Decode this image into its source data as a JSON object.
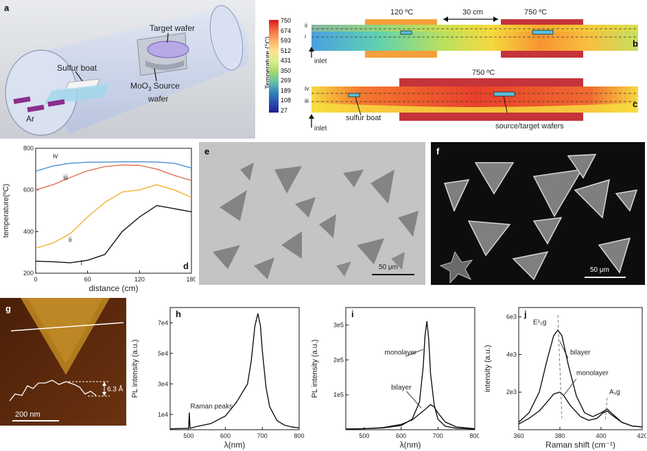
{
  "panel_a": {
    "label": "a",
    "target_wafer": "Target wafer",
    "sulfur_boat": "Sulfur boat",
    "source_wafer_line1": "MoO",
    "source_wafer_sub": "3",
    "source_wafer_line1b": " Source",
    "source_wafer_line2": "wafer",
    "ar": "Ar"
  },
  "colorbar": {
    "title": "Temperature (°C)",
    "ticks": [
      "750",
      "674",
      "593",
      "512",
      "431",
      "350",
      "269",
      "189",
      "108",
      "27"
    ]
  },
  "panel_b": {
    "label": "b",
    "temp_left": "120 ºC",
    "distance": "30 cm",
    "temp_right": "750 ºC",
    "line_ii": "ii",
    "line_i": "i",
    "inlet": "inlet"
  },
  "panel_c": {
    "label": "c",
    "temp": "750 ºC",
    "line_iv": "iv",
    "line_iii": "iii",
    "inlet": "inlet",
    "sulfur_boat": "sulfur boat",
    "wafers": "source/target wafers"
  },
  "panel_e": {
    "label": "e",
    "scale": "50 μm"
  },
  "panel_f": {
    "label": "f",
    "scale": "50 μm"
  },
  "panel_g": {
    "label": "g",
    "height": "6.3 Å",
    "scale": "200 nm"
  },
  "chart_data": [
    {
      "id": "d",
      "label": "d",
      "type": "line",
      "xlabel": "distance (cm)",
      "ylabel": "temperature(ºC)",
      "xlim": [
        0,
        180
      ],
      "ylim": [
        200,
        800
      ],
      "xticks": [
        "0",
        "60",
        "120",
        "180"
      ],
      "yticks": [
        "200",
        "400",
        "600",
        "800"
      ],
      "series": [
        {
          "name": "iv",
          "color": "#4a8fcf",
          "x": [
            0,
            20,
            40,
            60,
            80,
            100,
            120,
            140,
            160,
            180
          ],
          "y": [
            690,
            715,
            728,
            733,
            734,
            735,
            735,
            734,
            728,
            705
          ]
        },
        {
          "name": "iii",
          "color": "#e07050",
          "x": [
            0,
            20,
            40,
            60,
            80,
            100,
            120,
            140,
            160,
            180
          ],
          "y": [
            600,
            625,
            660,
            692,
            712,
            720,
            718,
            700,
            670,
            645
          ]
        },
        {
          "name": "ii",
          "color": "#f0b030",
          "x": [
            0,
            20,
            40,
            60,
            80,
            100,
            120,
            140,
            160,
            180
          ],
          "y": [
            320,
            345,
            390,
            470,
            540,
            590,
            600,
            625,
            600,
            565
          ]
        },
        {
          "name": "i",
          "color": "#111111",
          "x": [
            0,
            20,
            40,
            60,
            80,
            100,
            120,
            140,
            160,
            180
          ],
          "y": [
            258,
            255,
            250,
            262,
            290,
            400,
            470,
            525,
            510,
            495
          ]
        }
      ],
      "annotations": [
        {
          "text": "iv",
          "x": 20,
          "y": 752
        },
        {
          "text": "iii",
          "x": 32,
          "y": 648
        },
        {
          "text": "ii",
          "x": 38,
          "y": 350
        },
        {
          "text": "i",
          "x": 52,
          "y": 238
        }
      ]
    },
    {
      "id": "h",
      "label": "h",
      "type": "line",
      "xlabel": "λ(nm)",
      "ylabel": "PL intensity (a.u.)",
      "xlim": [
        450,
        800
      ],
      "ylim": [
        0,
        80000
      ],
      "xticks": [
        "500",
        "600",
        "700",
        "800"
      ],
      "yticks": [
        "1e4",
        "3e4",
        "5e4",
        "7e4"
      ],
      "series": [
        {
          "name": "",
          "color": "#111111",
          "x": [
            450,
            480,
            500,
            502,
            504,
            508,
            520,
            560,
            600,
            630,
            650,
            660,
            670,
            680,
            688,
            695,
            700,
            710,
            720,
            740,
            760,
            780,
            800
          ],
          "y": [
            600,
            800,
            900,
            11000,
            900,
            1200,
            2000,
            4000,
            9000,
            18000,
            26000,
            30000,
            45000,
            68000,
            76000,
            68000,
            52000,
            28000,
            15000,
            6000,
            3000,
            1800,
            1200
          ]
        }
      ],
      "annotations": [
        {
          "text": "Raman peaks",
          "x": 505,
          "y": 14000
        }
      ]
    },
    {
      "id": "i",
      "label": "i",
      "type": "line",
      "xlabel": "λ(nm)",
      "ylabel": "PL intensity (a.u.)",
      "xlim": [
        450,
        800
      ],
      "ylim": [
        0,
        350000
      ],
      "xticks": [
        "500",
        "600",
        "700",
        "800"
      ],
      "yticks": [
        "1e5",
        "2e5",
        "3e5"
      ],
      "series": [
        {
          "name": "monolayer",
          "color": "#111111",
          "x": [
            450,
            500,
            550,
            600,
            630,
            650,
            660,
            665,
            670,
            675,
            680,
            690,
            700,
            720,
            750,
            800
          ],
          "y": [
            2000,
            3000,
            5000,
            12000,
            30000,
            80000,
            180000,
            270000,
            310000,
            260000,
            160000,
            70000,
            30000,
            10000,
            4000,
            2000
          ]
        },
        {
          "name": "bilayer",
          "color": "#111111",
          "x": [
            450,
            500,
            550,
            600,
            630,
            650,
            665,
            680,
            690,
            700,
            720,
            750,
            800
          ],
          "y": [
            2000,
            3000,
            6000,
            15000,
            28000,
            45000,
            58000,
            72000,
            65000,
            48000,
            22000,
            8000,
            3000
          ]
        }
      ],
      "annotations": [
        {
          "text": "monolayer",
          "x": 555,
          "y": 215000
        },
        {
          "text": "bilayer",
          "x": 573,
          "y": 115000
        }
      ]
    },
    {
      "id": "j",
      "label": "j",
      "type": "line",
      "xlabel": "Raman shift (cm⁻¹)",
      "ylabel": "intensity (a.u.)",
      "xlim": [
        360,
        420
      ],
      "ylim": [
        0,
        6500
      ],
      "xticks": [
        "360",
        "380",
        "400",
        "420"
      ],
      "yticks": [
        "2e3",
        "4e3",
        "6e3"
      ],
      "series": [
        {
          "name": "bilayer",
          "color": "#111111",
          "x": [
            360,
            365,
            370,
            374,
            377,
            379,
            381,
            384,
            388,
            392,
            396,
            400,
            403,
            406,
            410,
            415,
            420
          ],
          "y": [
            400,
            900,
            2000,
            3800,
            5000,
            5300,
            5000,
            3500,
            1800,
            900,
            700,
            900,
            1100,
            800,
            400,
            200,
            150
          ]
        },
        {
          "name": "monolayer",
          "color": "#111111",
          "x": [
            360,
            365,
            370,
            374,
            377,
            380,
            382,
            385,
            390,
            394,
            398,
            401,
            403,
            405,
            410,
            415,
            420
          ],
          "y": [
            300,
            600,
            1000,
            1500,
            1900,
            2000,
            1800,
            1300,
            700,
            500,
            600,
            900,
            1000,
            800,
            400,
            200,
            150
          ]
        }
      ],
      "annotations": [
        {
          "text": "E¹₂g",
          "x": 367,
          "y": 5600
        },
        {
          "text": "bilayer",
          "x": 385,
          "y": 4000
        },
        {
          "text": "monolayer",
          "x": 388,
          "y": 2900
        },
        {
          "text": "A₁g",
          "x": 404,
          "y": 1900
        }
      ]
    }
  ]
}
